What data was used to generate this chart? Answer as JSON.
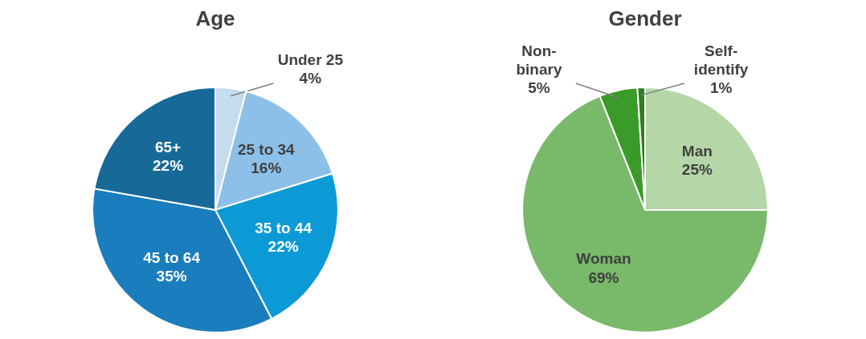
{
  "chart_data": [
    {
      "type": "pie",
      "title": "Age",
      "categories": [
        "Under 25",
        "25 to 34",
        "35 to 44",
        "45 to 64",
        "65+"
      ],
      "values": [
        4,
        16,
        22,
        35,
        22
      ],
      "colors": [
        "#c5dcef",
        "#8dc0e8",
        "#0b9ad6",
        "#1a7dbd",
        "#176a98"
      ],
      "value_labels": [
        "4%",
        "16%",
        "22%",
        "35%",
        "22%"
      ]
    },
    {
      "type": "pie",
      "title": "Gender",
      "categories": [
        "Man",
        "Woman",
        "Non-binary",
        "Self-identify"
      ],
      "values": [
        25,
        69,
        5,
        1
      ],
      "colors": [
        "#b5d7a8",
        "#79b96a",
        "#3a9a2a",
        "#2e7d1f"
      ],
      "value_labels": [
        "25%",
        "69%",
        "5%",
        "1%"
      ]
    }
  ]
}
